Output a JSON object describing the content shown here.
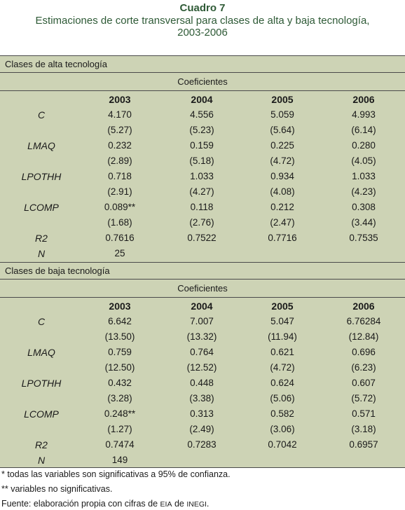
{
  "header": {
    "title": "Cuadro 7",
    "subtitle_line1": "Estimaciones de corte transversal para clases de alta y baja tecnología,",
    "subtitle_line2": "2003-2006"
  },
  "table_alta": {
    "section_label": "Clases de alta tecnología",
    "coef_label": "Coeficientes",
    "years": [
      "2003",
      "2004",
      "2005",
      "2006"
    ],
    "rows": [
      {
        "var": "C",
        "vals": [
          "4.170",
          "4.556",
          "5.059",
          "4.993"
        ],
        "t": [
          "(5.27)",
          "(5.23)",
          "(5.64)",
          "(6.14)"
        ]
      },
      {
        "var": "LMAQ",
        "vals": [
          "0.232",
          "0.159",
          "0.225",
          "0.280"
        ],
        "t": [
          "(2.89)",
          "(5.18)",
          "(4.72)",
          "(4.05)"
        ]
      },
      {
        "var": "LPOTHH",
        "vals": [
          "0.718",
          "1.033",
          "0.934",
          "1.033"
        ],
        "t": [
          "(2.91)",
          "(4.27)",
          "(4.08)",
          "(4.23)"
        ]
      },
      {
        "var": "LCOMP",
        "vals": [
          "0.089**",
          "0.118",
          "0.212",
          "0.308"
        ],
        "t": [
          "(1.68)",
          "(2.76)",
          "(2.47)",
          "(3.44)"
        ]
      }
    ],
    "r2": {
      "var": "R2",
      "vals": [
        "0.7616",
        "0.7522",
        "0.7716",
        "0.7535"
      ]
    },
    "n": {
      "var": "N",
      "val": "25"
    }
  },
  "table_baja": {
    "section_label": "Clases de baja tecnología",
    "coef_label": "Coeficientes",
    "years": [
      "2003",
      "2004",
      "2005",
      "2006"
    ],
    "rows": [
      {
        "var": "C",
        "vals": [
          "6.642",
          "7.007",
          "5.047",
          "6.76284"
        ],
        "t": [
          "(13.50)",
          "(13.32)",
          "(11.94)",
          "(12.84)"
        ]
      },
      {
        "var": "LMAQ",
        "vals": [
          "0.759",
          "0.764",
          "0.621",
          "0.696"
        ],
        "t": [
          "(12.50)",
          "(12.52)",
          "(4.72)",
          "(6.23)"
        ]
      },
      {
        "var": "LPOTHH",
        "vals": [
          "0.432",
          "0.448",
          "0.624",
          "0.607"
        ],
        "t": [
          "(3.28)",
          "(3.38)",
          "(5.06)",
          "(5.72)"
        ]
      },
      {
        "var": "LCOMP",
        "vals": [
          "0.248**",
          "0.313",
          "0.582",
          "0.571"
        ],
        "t": [
          "(1.27)",
          "(2.49)",
          "(3.06)",
          "(3.18)"
        ]
      }
    ],
    "r2": {
      "var": "R2",
      "vals": [
        "0.7474",
        "0.7283",
        "0.7042",
        "0.6957"
      ]
    },
    "n": {
      "var": "N",
      "val": "149"
    }
  },
  "notes": {
    "note1": "* todas las variables son significativas a 95% de confianza.",
    "note2": "** variables no significativas.",
    "source_prefix": "Fuente: elaboración propia con cifras de ",
    "source_eia": "EIA",
    "source_mid": " de ",
    "source_inegi": "INEGI",
    "source_end": "."
  },
  "colors": {
    "title_green": "#2e5a36",
    "panel_bg": "#cdd3b5",
    "rule": "#4a4a4a"
  }
}
